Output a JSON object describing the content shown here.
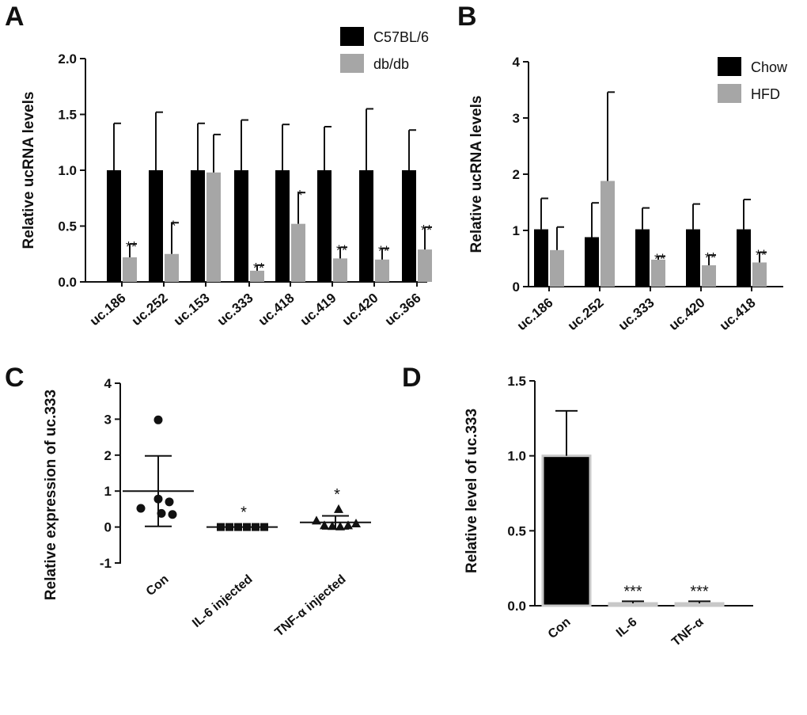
{
  "colors": {
    "black": "#000000",
    "gray": "#a6a6a6",
    "axis": "#111111"
  },
  "panels": {
    "A": {
      "letter": "A"
    },
    "B": {
      "letter": "B"
    },
    "C": {
      "letter": "C"
    },
    "D": {
      "letter": "D"
    }
  },
  "chart_data": [
    {
      "panel": "A",
      "type": "bar",
      "ylabel": "Relative ucRNA levels",
      "ylim": [
        0,
        2.0
      ],
      "yticks": [
        0,
        0.5,
        1.0,
        1.5,
        2.0
      ],
      "ytick_labels": [
        "0.0",
        "0.5",
        "1.0",
        "1.5",
        "2.0"
      ],
      "categories": [
        "uc.186",
        "uc.252",
        "uc.153",
        "uc.333",
        "uc.418",
        "uc.419",
        "uc.420",
        "uc.366"
      ],
      "series": [
        {
          "name": "C57BL/6",
          "color": "#000000",
          "values": [
            1.0,
            1.0,
            1.0,
            1.0,
            1.0,
            1.0,
            1.0,
            1.0
          ],
          "errors": [
            0.42,
            0.52,
            0.42,
            0.45,
            0.41,
            0.39,
            0.55,
            0.36
          ]
        },
        {
          "name": "db/db",
          "color": "#a6a6a6",
          "values": [
            0.22,
            0.25,
            0.98,
            0.1,
            0.52,
            0.21,
            0.2,
            0.29
          ],
          "errors": [
            0.12,
            0.28,
            0.34,
            0.05,
            0.28,
            0.1,
            0.1,
            0.2
          ],
          "significance": [
            "**",
            "*",
            "",
            "**",
            "*",
            "**",
            "**",
            "**"
          ]
        }
      ]
    },
    {
      "panel": "B",
      "type": "bar",
      "ylabel": "Relative ucRNA levels",
      "ylim": [
        0,
        4
      ],
      "yticks": [
        0,
        1,
        2,
        3,
        4
      ],
      "ytick_labels": [
        "0",
        "1",
        "2",
        "3",
        "4"
      ],
      "categories": [
        "uc.186",
        "uc.252",
        "uc.333",
        "uc.420",
        "uc.418"
      ],
      "series": [
        {
          "name": "Chow",
          "color": "#000000",
          "values": [
            1.02,
            0.88,
            1.02,
            1.02,
            1.02
          ],
          "errors": [
            0.55,
            0.61,
            0.38,
            0.45,
            0.53
          ]
        },
        {
          "name": "HFD",
          "color": "#a6a6a6",
          "values": [
            0.65,
            1.88,
            0.48,
            0.38,
            0.43
          ],
          "errors": [
            0.41,
            1.58,
            0.06,
            0.18,
            0.18
          ],
          "significance": [
            "",
            "",
            "**",
            "**",
            "**"
          ]
        }
      ]
    },
    {
      "panel": "C",
      "type": "scatter",
      "ylabel": "Relative expression of uc.333",
      "ylim": [
        -1,
        4
      ],
      "yticks": [
        -1,
        0,
        1,
        2,
        3,
        4
      ],
      "ytick_labels": [
        "-1",
        "0",
        "1",
        "2",
        "3",
        "4"
      ],
      "categories": [
        "Con",
        "IL-6 injected",
        "TNF-α injected"
      ],
      "groups": [
        {
          "name": "Con",
          "marker": "circle",
          "points": [
            2.98,
            0.78,
            0.52,
            0.7,
            0.38,
            0.35
          ],
          "mean": 1.0,
          "sd": 0.98,
          "significance": ""
        },
        {
          "name": "IL-6 injected",
          "marker": "square",
          "points": [
            0,
            0,
            0,
            0,
            0,
            0
          ],
          "mean": 0.0,
          "sd": 0.0,
          "significance": "*"
        },
        {
          "name": "TNF-α injected",
          "marker": "triangle",
          "points": [
            0.5,
            0.18,
            0.05,
            0.03,
            0.02,
            0.05,
            0.1
          ],
          "mean": 0.13,
          "sd": 0.18,
          "significance": "*"
        }
      ]
    },
    {
      "panel": "D",
      "type": "bar",
      "ylabel": "Relative level of uc.333",
      "ylim": [
        0,
        1.5
      ],
      "yticks": [
        0,
        0.5,
        1.0,
        1.5
      ],
      "ytick_labels": [
        "0.0",
        "0.5",
        "1.0",
        "1.5"
      ],
      "categories": [
        "Con",
        "IL-6",
        "TNF-α"
      ],
      "values": [
        1.0,
        0.01,
        0.01
      ],
      "errors": [
        0.3,
        0.02,
        0.02
      ],
      "colors": [
        "#000000",
        "#a6a6a6",
        "#a6a6a6"
      ],
      "significance": [
        "",
        "***",
        "***"
      ]
    }
  ]
}
